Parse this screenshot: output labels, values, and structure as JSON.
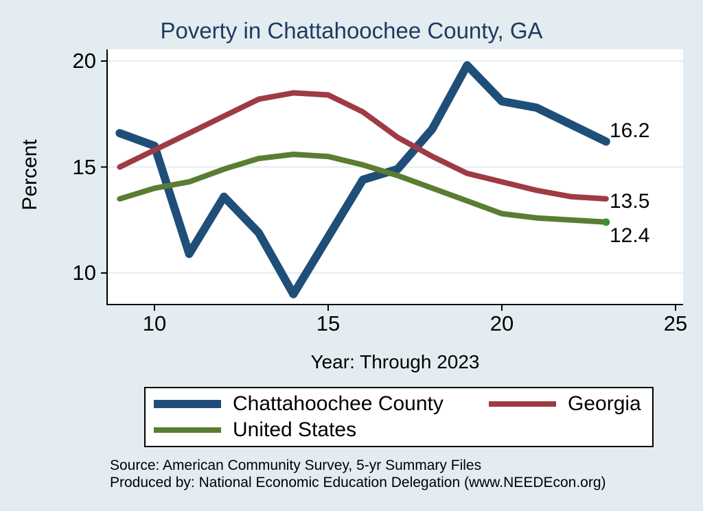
{
  "title": "Poverty in Chattahoochee County, GA",
  "colors": {
    "background": "#e3edf1",
    "plot_background": "#ffffff",
    "gridline": "#e2eef5",
    "axis": "#000000",
    "title_text": "#1f3a5f",
    "county_line": "#1f4e79",
    "georgia_line": "#9e3b43",
    "us_line": "#5a7d32",
    "us_end_dot": "#3c9132"
  },
  "y_axis": {
    "label": "Percent",
    "ticks": [
      "20",
      "15",
      "10"
    ]
  },
  "x_axis": {
    "label": "Year: Through 2023",
    "ticks": [
      "10",
      "15",
      "20",
      "25"
    ]
  },
  "end_labels": [
    "16.2",
    "13.5",
    "12.4"
  ],
  "legend": {
    "items": [
      {
        "label": "Chattahoochee County",
        "color_key": "county_line",
        "thick": true
      },
      {
        "label": "Georgia",
        "color_key": "georgia_line",
        "thick": false
      },
      {
        "label": "United States",
        "color_key": "us_line",
        "thick": false
      }
    ]
  },
  "notes": [
    "Source: American Community Survey, 5-yr Summary Files",
    "Produced by: National Economic Education Delegation (www.NEEDEcon.org)"
  ],
  "chart_data": {
    "type": "line",
    "title": "Poverty in Chattahoochee County, GA",
    "xlabel": "Year: Through 2023",
    "ylabel": "Percent",
    "x": [
      9,
      10,
      11,
      12,
      13,
      14,
      15,
      16,
      17,
      18,
      19,
      20,
      21,
      22,
      23
    ],
    "x_tick_values": [
      10,
      15,
      20,
      25
    ],
    "y_tick_values": [
      10,
      15,
      20
    ],
    "xlim": [
      8.6,
      25.2
    ],
    "ylim": [
      8.5,
      20.6
    ],
    "grid": "horizontal",
    "legend_position": "bottom",
    "series": [
      {
        "name": "Chattahoochee County",
        "values": [
          16.6,
          16.0,
          10.9,
          13.6,
          11.9,
          9.0,
          11.7,
          14.4,
          14.9,
          16.8,
          19.8,
          18.1,
          17.8,
          17.0,
          16.2
        ],
        "end_label": "16.2"
      },
      {
        "name": "Georgia",
        "values": [
          15.0,
          15.8,
          16.6,
          17.4,
          18.2,
          18.5,
          18.4,
          17.6,
          16.4,
          15.5,
          14.7,
          14.3,
          13.9,
          13.6,
          13.5
        ],
        "end_label": "13.5"
      },
      {
        "name": "United States",
        "values": [
          13.5,
          14.0,
          14.3,
          14.9,
          15.4,
          15.6,
          15.5,
          15.1,
          14.6,
          14.0,
          13.4,
          12.8,
          12.6,
          12.5,
          12.4
        ],
        "end_label": "12.4"
      }
    ]
  }
}
